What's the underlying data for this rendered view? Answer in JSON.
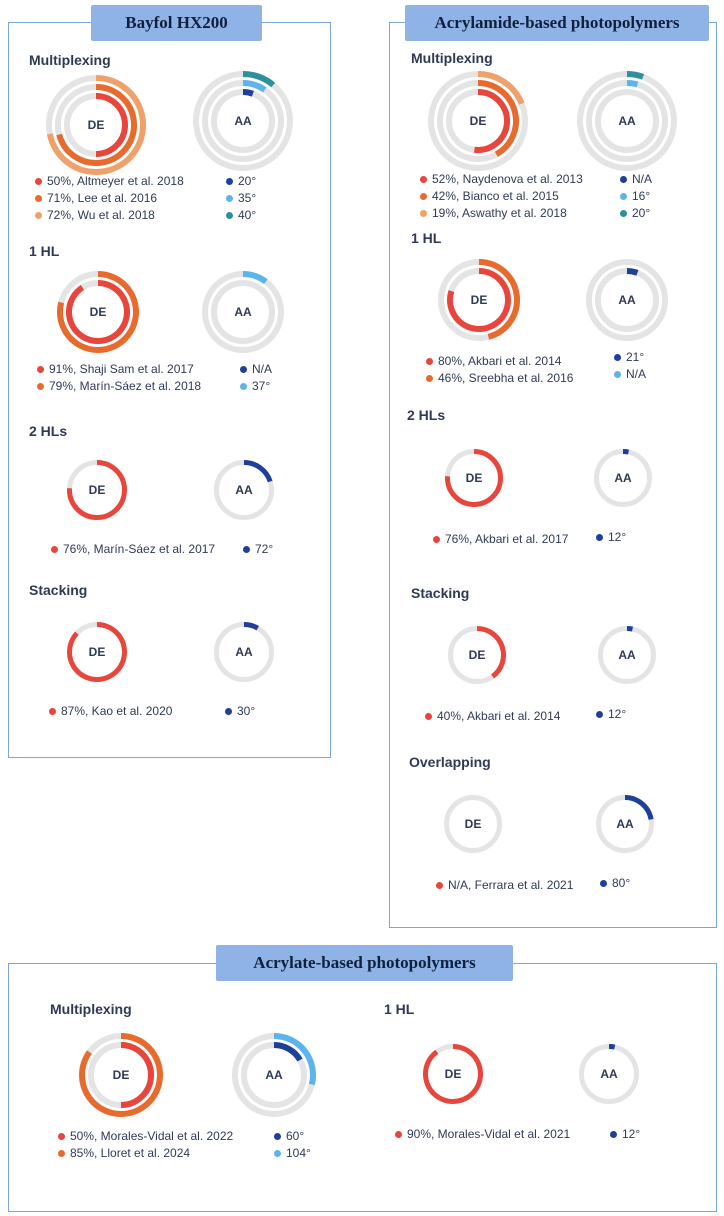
{
  "colors": {
    "track": "#e4e4e4",
    "de_red": "#e8453c",
    "de_orange": "#e76b2d",
    "de_lightorange": "#f0a06a",
    "aa_darkblue": "#1f3f9a",
    "aa_lightblue": "#5cb4ee",
    "aa_teal": "#2e8f9e"
  },
  "panels": {
    "bayfol": {
      "title": "Bayfol HX200",
      "sections": [
        {
          "title": "Multiplexing"
        },
        {
          "title": "1 HL"
        },
        {
          "title": "2 HLs"
        },
        {
          "title": "Stacking"
        }
      ]
    },
    "acrylamide": {
      "title": "Acrylamide-based photopolymers",
      "sections": [
        {
          "title": "Multiplexing"
        },
        {
          "title": "1 HL"
        },
        {
          "title": "2 HLs"
        },
        {
          "title": "Stacking"
        },
        {
          "title": "Overlapping"
        }
      ]
    },
    "acrylate": {
      "title": "Acrylate-based photopolymers",
      "sections": [
        {
          "title": "Multiplexing"
        },
        {
          "title": "1 HL"
        }
      ]
    }
  },
  "chart_data": [
    {
      "id": "bay-mux",
      "type": "radial-progress",
      "panel": "Bayfol HX200",
      "section": "Multiplexing",
      "de": {
        "center_label": "DE",
        "rings": [
          {
            "value": 50,
            "unit": "%",
            "color": "#e8453c",
            "label": "50%, Altmeyer et al. 2018"
          },
          {
            "value": 71,
            "unit": "%",
            "color": "#e76b2d",
            "label": "71%, Lee et al. 2016"
          },
          {
            "value": 72,
            "unit": "%",
            "color": "#f0a06a",
            "label": "72%, Wu et al. 2018"
          }
        ]
      },
      "aa": {
        "center_label": "AA",
        "rings": [
          {
            "value": 20,
            "color": "#1f3f9a",
            "label": "20°"
          },
          {
            "value": 35,
            "color": "#5cb4ee",
            "label": "35°"
          },
          {
            "value": 40,
            "color": "#2e8f9e",
            "label": "40°"
          }
        ]
      }
    },
    {
      "id": "bay-1hl",
      "type": "radial-progress",
      "panel": "Bayfol HX200",
      "section": "1 HL",
      "de": {
        "center_label": "DE",
        "rings": [
          {
            "value": 91,
            "unit": "%",
            "color": "#e8453c",
            "label": "91%, Shaji Sam et al. 2017"
          },
          {
            "value": 79,
            "unit": "%",
            "color": "#e76b2d",
            "label": "79%, Marín-Sáez et al. 2018"
          }
        ]
      },
      "aa": {
        "center_label": "AA",
        "rings": [
          {
            "value": 0,
            "color": "#1f3f9a",
            "label": "N/A"
          },
          {
            "value": 37,
            "color": "#5cb4ee",
            "label": "37°"
          }
        ]
      }
    },
    {
      "id": "bay-2hl",
      "type": "radial-progress",
      "panel": "Bayfol HX200",
      "section": "2 HLs",
      "de": {
        "center_label": "DE",
        "rings": [
          {
            "value": 76,
            "unit": "%",
            "color": "#e8453c",
            "label": "76%, Marín-Sáez et al. 2017"
          }
        ]
      },
      "aa": {
        "center_label": "AA",
        "rings": [
          {
            "value": 72,
            "color": "#1f3f9a",
            "label": "72°"
          }
        ]
      }
    },
    {
      "id": "bay-stack",
      "type": "radial-progress",
      "panel": "Bayfol HX200",
      "section": "Stacking",
      "de": {
        "center_label": "DE",
        "rings": [
          {
            "value": 87,
            "unit": "%",
            "color": "#e8453c",
            "label": "87%, Kao et al. 2020"
          }
        ]
      },
      "aa": {
        "center_label": "AA",
        "rings": [
          {
            "value": 30,
            "color": "#1f3f9a",
            "label": "30°"
          }
        ]
      }
    },
    {
      "id": "acm-mux",
      "type": "radial-progress",
      "panel": "Acrylamide-based photopolymers",
      "section": "Multiplexing",
      "de": {
        "center_label": "DE",
        "rings": [
          {
            "value": 52,
            "unit": "%",
            "color": "#e8453c",
            "label": "52%, Naydenova et al. 2013"
          },
          {
            "value": 42,
            "unit": "%",
            "color": "#e76b2d",
            "label": "42%, Bianco et al. 2015"
          },
          {
            "value": 19,
            "unit": "%",
            "color": "#f0a06a",
            "label": "19%, Aswathy et al. 2018"
          }
        ]
      },
      "aa": {
        "center_label": "AA",
        "rings": [
          {
            "value": 0,
            "color": "#1f3f9a",
            "label": "N/A"
          },
          {
            "value": 16,
            "color": "#5cb4ee",
            "label": "16°"
          },
          {
            "value": 20,
            "color": "#2e8f9e",
            "label": "20°"
          }
        ]
      }
    },
    {
      "id": "acm-1hl",
      "type": "radial-progress",
      "panel": "Acrylamide-based photopolymers",
      "section": "1 HL",
      "de": {
        "center_label": "DE",
        "rings": [
          {
            "value": 80,
            "unit": "%",
            "color": "#e8453c",
            "label": "80%, Akbari et al. 2014"
          },
          {
            "value": 46,
            "unit": "%",
            "color": "#e76b2d",
            "label": "46%, Sreebha et al. 2016"
          }
        ]
      },
      "aa": {
        "center_label": "AA",
        "rings": [
          {
            "value": 21,
            "color": "#1f3f9a",
            "label": "21°"
          },
          {
            "value": 0,
            "color": "#5cb4ee",
            "label": "N/A"
          }
        ]
      }
    },
    {
      "id": "acm-2hl",
      "type": "radial-progress",
      "panel": "Acrylamide-based photopolymers",
      "section": "2 HLs",
      "de": {
        "center_label": "DE",
        "rings": [
          {
            "value": 76,
            "unit": "%",
            "color": "#e8453c",
            "label": "76%, Akbari et al. 2017"
          }
        ]
      },
      "aa": {
        "center_label": "AA",
        "rings": [
          {
            "value": 12,
            "color": "#1f3f9a",
            "label": "12°"
          }
        ]
      }
    },
    {
      "id": "acm-stack",
      "type": "radial-progress",
      "panel": "Acrylamide-based photopolymers",
      "section": "Stacking",
      "de": {
        "center_label": "DE",
        "rings": [
          {
            "value": 40,
            "unit": "%",
            "color": "#e8453c",
            "label": "40%, Akbari et al. 2014"
          }
        ]
      },
      "aa": {
        "center_label": "AA",
        "rings": [
          {
            "value": 12,
            "color": "#1f3f9a",
            "label": "12°"
          }
        ]
      }
    },
    {
      "id": "acm-overlap",
      "type": "radial-progress",
      "panel": "Acrylamide-based photopolymers",
      "section": "Overlapping",
      "de": {
        "center_label": "DE",
        "rings": [
          {
            "value": 0,
            "unit": "%",
            "color": "#e8453c",
            "label": "N/A, Ferrara et al. 2021"
          }
        ]
      },
      "aa": {
        "center_label": "AA",
        "rings": [
          {
            "value": 80,
            "color": "#1f3f9a",
            "label": "80°"
          }
        ]
      }
    },
    {
      "id": "acr-mux",
      "type": "radial-progress",
      "panel": "Acrylate-based photopolymers",
      "section": "Multiplexing",
      "de": {
        "center_label": "DE",
        "rings": [
          {
            "value": 50,
            "unit": "%",
            "color": "#e8453c",
            "label": "50%, Morales-Vidal et al. 2022"
          },
          {
            "value": 85,
            "unit": "%",
            "color": "#e76b2d",
            "label": "85%, Lloret et al. 2024"
          }
        ]
      },
      "aa": {
        "center_label": "AA",
        "rings": [
          {
            "value": 60,
            "color": "#1f3f9a",
            "label": "60°"
          },
          {
            "value": 104,
            "color": "#5cb4ee",
            "label": "104°"
          }
        ]
      }
    },
    {
      "id": "acr-1hl",
      "type": "radial-progress",
      "panel": "Acrylate-based photopolymers",
      "section": "1 HL",
      "de": {
        "center_label": "DE",
        "rings": [
          {
            "value": 90,
            "unit": "%",
            "color": "#e8453c",
            "label": "90%, Morales-Vidal et al. 2021"
          }
        ]
      },
      "aa": {
        "center_label": "AA",
        "rings": [
          {
            "value": 12,
            "color": "#1f3f9a",
            "label": "12°"
          }
        ]
      }
    }
  ]
}
